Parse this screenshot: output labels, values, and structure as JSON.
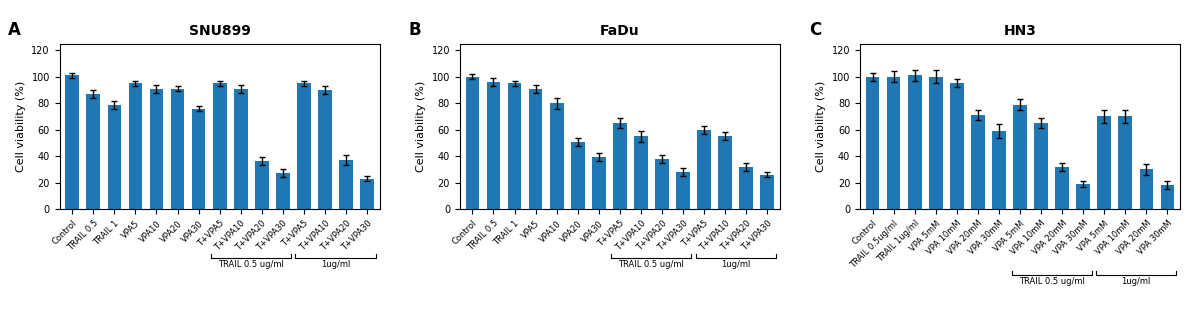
{
  "chart_data": [
    {
      "type": "bar",
      "panel_label": "A",
      "title": "SNU899",
      "ylabel": "Cell viability (%)",
      "categories": [
        "Control",
        "TRAIL 0.5",
        "TRAIL 1",
        "VPA5",
        "VPA10",
        "VPA20",
        "VPA30",
        "T+VPA5",
        "T+VPA10",
        "T+VPA20",
        "T+VPA30",
        "T+VPA5",
        "T+VPA10",
        "T+VPA20",
        "T+VPA30"
      ],
      "values": [
        101,
        87,
        79,
        95,
        91,
        91,
        76,
        95,
        91,
        36,
        27,
        95,
        90,
        37,
        23
      ],
      "errors": [
        2,
        3,
        3,
        2,
        3,
        2,
        2,
        2,
        3,
        3,
        3,
        2,
        3,
        4,
        2
      ],
      "groups": [
        {
          "label": "TRAIL 0.5 ug/ml",
          "first": 7,
          "last": 10
        },
        {
          "label": "1ug/ml",
          "first": 11,
          "last": 14
        }
      ],
      "ylim": [
        0,
        125
      ],
      "yticks": [
        0,
        20,
        40,
        60,
        80,
        100,
        120
      ],
      "grid": false
    },
    {
      "type": "bar",
      "panel_label": "B",
      "title": "FaDu",
      "ylabel": "Cell viability (%)",
      "categories": [
        "Control",
        "TRAIL 0.5",
        "TRAIL 1",
        "VPA5",
        "VPA10",
        "VPA20",
        "VPA30",
        "T+VPA5",
        "T+VPA10",
        "T+VPA20",
        "T+VPA30",
        "T+VPA5",
        "T+VPA10",
        "T+VPA20",
        "T+VPA30"
      ],
      "values": [
        100,
        96,
        95,
        91,
        80,
        51,
        39,
        65,
        55,
        38,
        28,
        60,
        55,
        32,
        26
      ],
      "errors": [
        2,
        3,
        2,
        3,
        4,
        3,
        3,
        4,
        4,
        3,
        3,
        3,
        3,
        3,
        2
      ],
      "groups": [
        {
          "label": "TRAIL 0.5 ug/ml",
          "first": 7,
          "last": 10
        },
        {
          "label": "1ug/ml",
          "first": 11,
          "last": 14
        }
      ],
      "ylim": [
        0,
        125
      ],
      "yticks": [
        0,
        20,
        40,
        60,
        80,
        100,
        120
      ],
      "grid": false
    },
    {
      "type": "bar",
      "panel_label": "C",
      "title": "HN3",
      "ylabel": "Cell viability (%)",
      "categories": [
        "Control",
        "TRAIL 0.5ug/ml",
        "TRAIL 1ug/ml",
        "VPA 5mM",
        "VPA 10mM",
        "VPA 20mM",
        "VPA 30mM",
        "VPA 5mM",
        "VPA 10mM",
        "VPA 20mM",
        "VPA 30mM",
        "VPA 5mM",
        "VPA 10mM",
        "VPA 20mM",
        "VPA 30mM"
      ],
      "values": [
        100,
        100,
        101,
        100,
        95,
        71,
        59,
        79,
        65,
        32,
        19,
        70,
        70,
        30,
        18
      ],
      "errors": [
        3,
        4,
        4,
        5,
        3,
        4,
        5,
        4,
        4,
        3,
        2,
        5,
        5,
        4,
        3
      ],
      "groups": [
        {
          "label": "TRAIL 0.5 ug/ml",
          "first": 7,
          "last": 10
        },
        {
          "label": "1ug/ml",
          "first": 11,
          "last": 14
        }
      ],
      "ylim": [
        0,
        125
      ],
      "yticks": [
        0,
        20,
        40,
        60,
        80,
        100,
        120
      ],
      "grid": false
    }
  ]
}
